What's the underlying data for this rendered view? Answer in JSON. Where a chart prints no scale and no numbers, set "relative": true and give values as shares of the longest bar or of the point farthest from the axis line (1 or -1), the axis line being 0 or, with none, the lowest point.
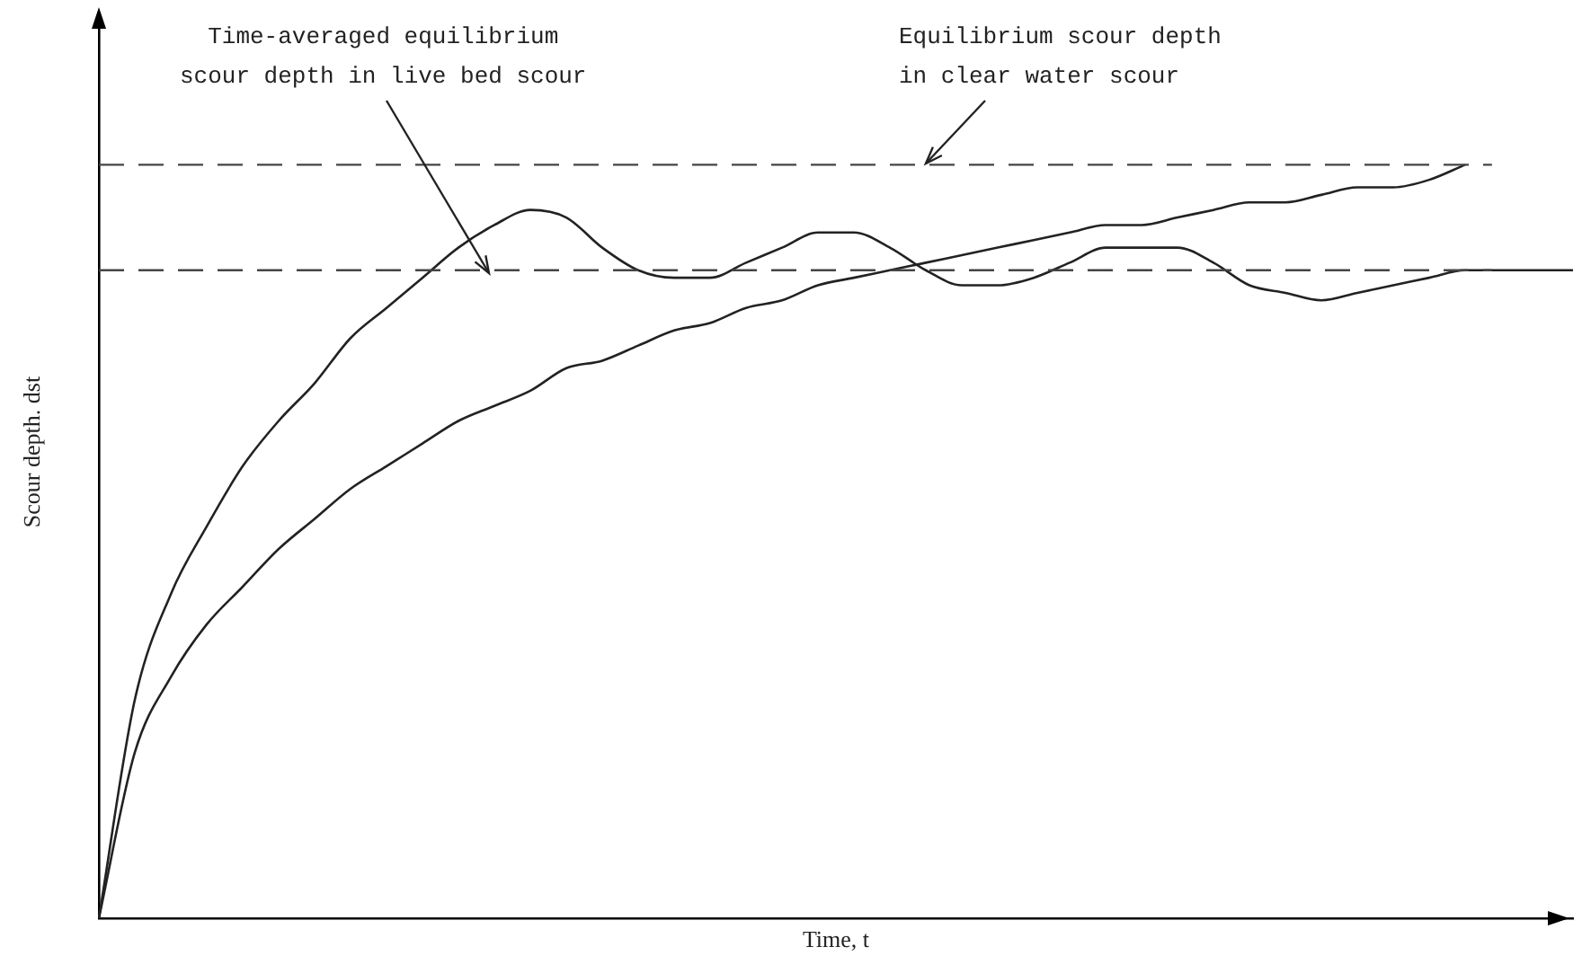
{
  "chart_data": {
    "type": "line",
    "relative": true,
    "xlabel": "Time, t",
    "ylabel": "Scour depth. dst",
    "categories": [
      null,
      null,
      null,
      null,
      null,
      null,
      null,
      null,
      null,
      null,
      null,
      null,
      null,
      null,
      null,
      null,
      null,
      null,
      null,
      null,
      null,
      null,
      null,
      null,
      null,
      null,
      null,
      null,
      null,
      null,
      null,
      null,
      null,
      null,
      null,
      null,
      null,
      null,
      null,
      null,
      null,
      null
    ],
    "series": [
      {
        "color": "#222222",
        "values": [
          0,
          0.29,
          0.43,
          0.52,
          0.6,
          0.66,
          0.71,
          0.77,
          0.81,
          0.85,
          0.89,
          0.92,
          0.94,
          0.93,
          0.89,
          0.86,
          0.85,
          0.85,
          0.87,
          0.89,
          0.91,
          0.91,
          0.89,
          0.86,
          0.84,
          0.84,
          0.85,
          0.87,
          0.89,
          0.89,
          0.89,
          0.87,
          0.84,
          0.83,
          0.82,
          0.83,
          0.84,
          0.85,
          0.86,
          0.86,
          0.86,
          0.86
        ]
      },
      {
        "color": "#222222",
        "values": [
          0,
          0.22,
          0.32,
          0.39,
          0.44,
          0.49,
          0.53,
          0.57,
          0.6,
          0.63,
          0.66,
          0.68,
          0.7,
          0.73,
          0.74,
          0.76,
          0.78,
          0.79,
          0.81,
          0.82,
          0.84,
          0.85,
          0.86,
          0.87,
          0.88,
          0.89,
          0.9,
          0.91,
          0.92,
          0.92,
          0.93,
          0.94,
          0.95,
          0.95,
          0.96,
          0.97,
          0.97,
          0.98,
          1,
          null,
          null,
          null
        ]
      }
    ],
    "ref_lines": [
      {
        "axis": "y",
        "value": 1,
        "color": "#444444",
        "line_style": "dashed"
      },
      {
        "axis": "y",
        "value": 0.86,
        "color": "#444444",
        "line_style": "dashed"
      }
    ],
    "annotations": [
      "Time-averaged equilibrium\nscour depth in live bed scour",
      "Equilibrium scour depth\nin clear water scour"
    ],
    "grid": false,
    "legend": false,
    "marker": "none",
    "line_style": "solid"
  }
}
